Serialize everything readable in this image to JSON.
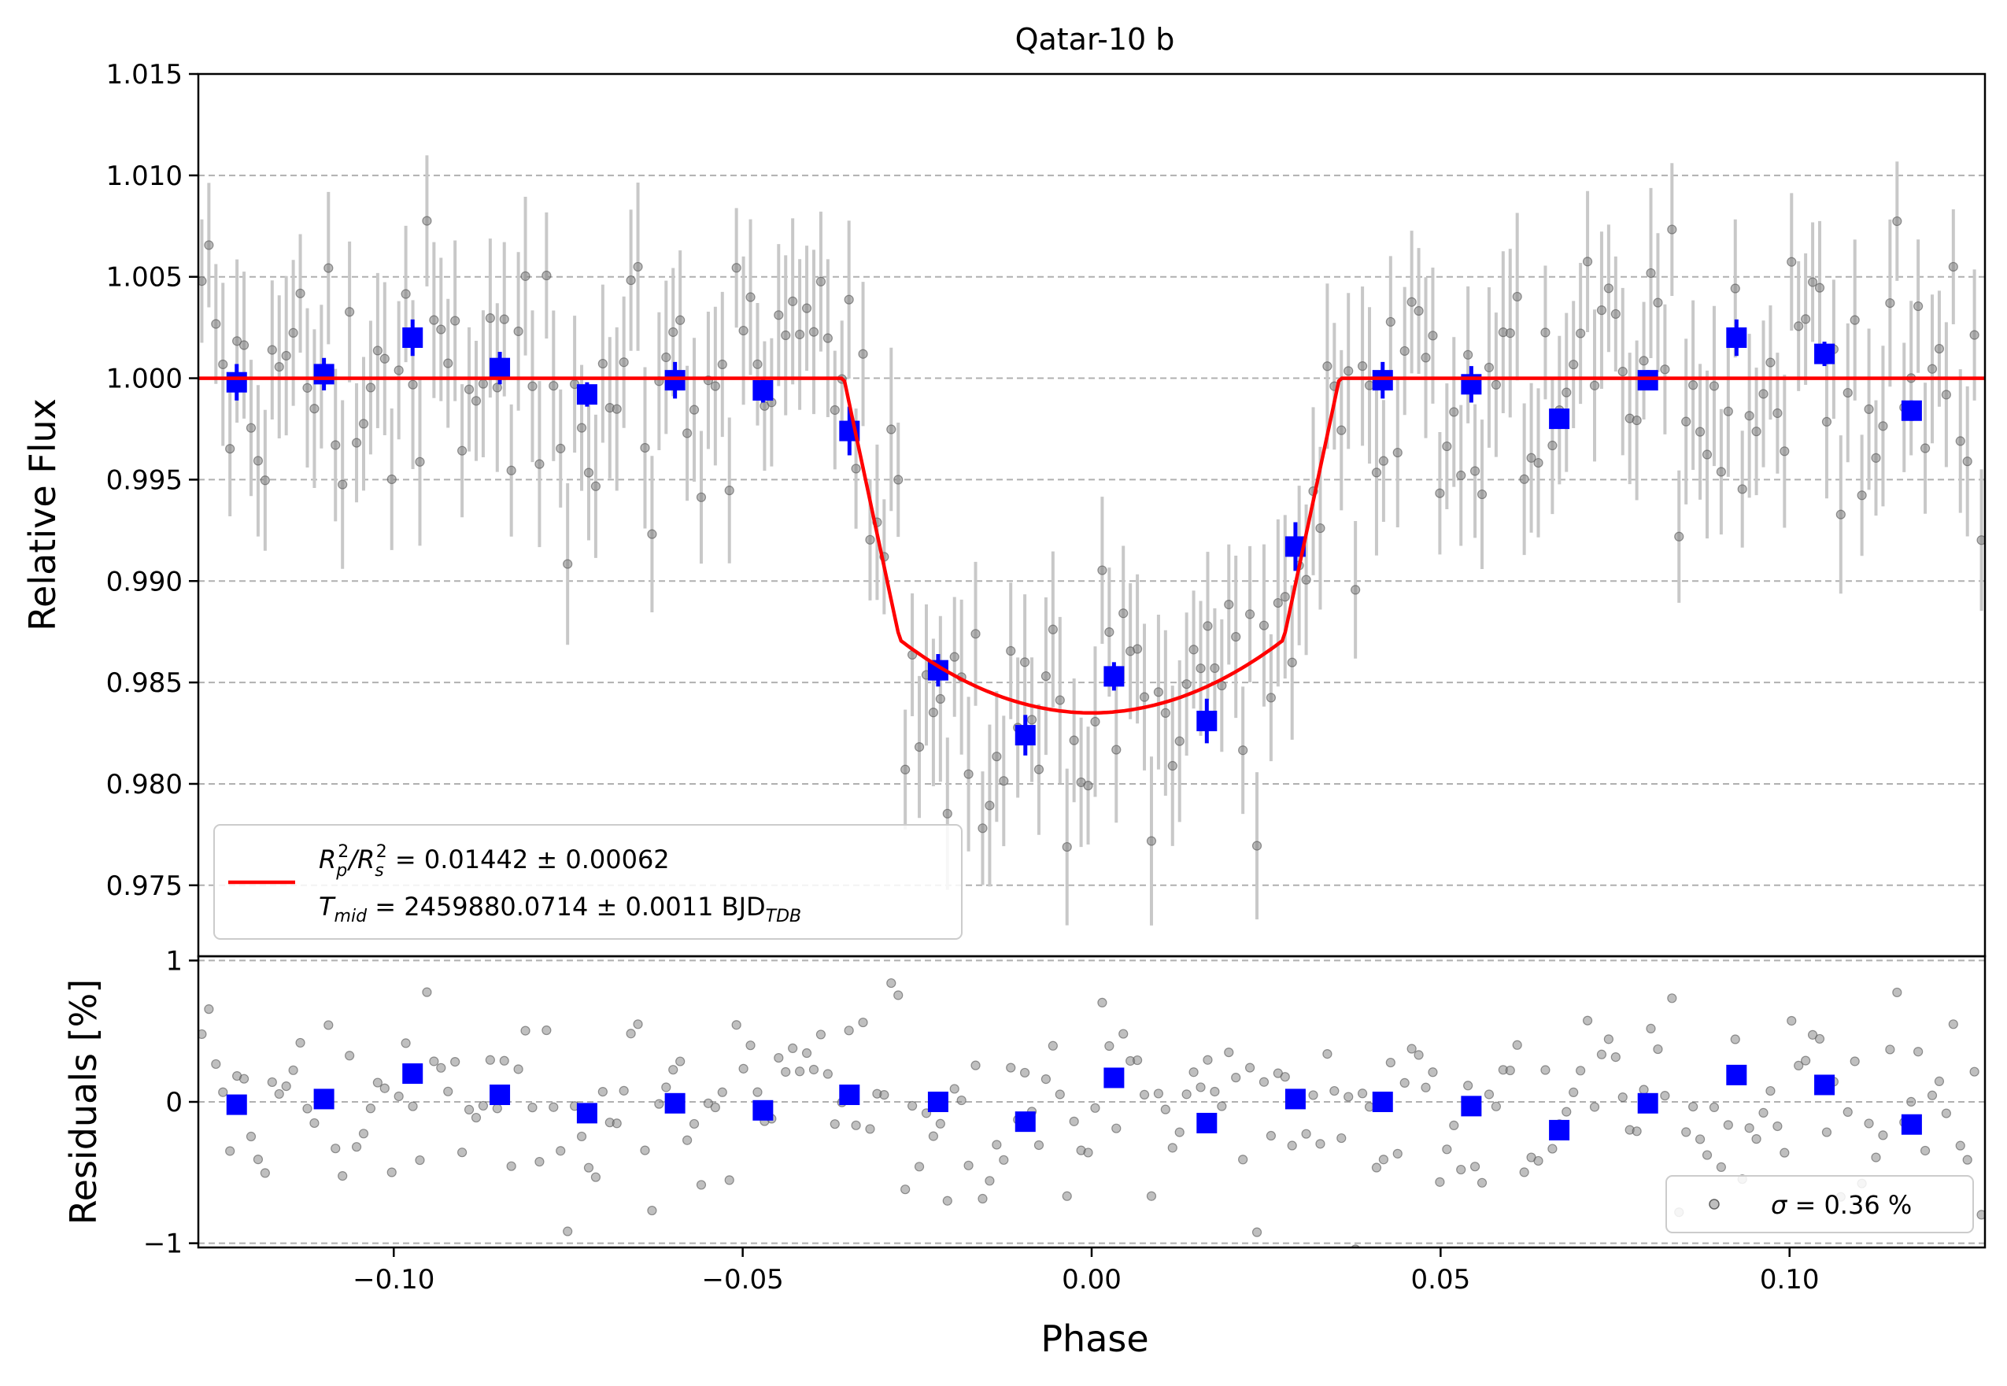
{
  "figure": {
    "title": "Qatar-10 b",
    "xlabel": "Phase",
    "colors": {
      "raw_points": "#808080",
      "raw_errorbars": "#c8c8c8",
      "binned": "#0000ff",
      "model": "#ff0000",
      "grid": "#b0b0b0"
    }
  },
  "chart_data": [
    {
      "type": "scatter",
      "title": "Qatar-10 b",
      "xlabel": "",
      "ylabel": "Relative Flux",
      "xlim": [
        -0.128,
        0.128
      ],
      "ylim": [
        0.9715,
        1.015
      ],
      "grid": "horizontal dashed",
      "yticks": [
        0.975,
        0.98,
        0.985,
        0.99,
        0.995,
        1.0,
        1.005,
        1.01,
        1.015
      ],
      "ytick_labels": [
        "0.975",
        "0.980",
        "0.985",
        "0.990",
        "0.995",
        "1.000",
        "1.005",
        "1.010",
        "1.015"
      ],
      "legend": {
        "placement": "lower-left",
        "line1_prefix": "R",
        "line1_sub1": "p",
        "line1_sup1": "2",
        "line1_sep": "/R",
        "line1_sub2": "s",
        "line1_sup2": "2",
        "line1_value": " = 0.01442 ± 0.00062",
        "line2_prefix": "T",
        "line2_sub": "mid",
        "line2_value": " = 2459880.0714 ± 0.0011 BJD",
        "line2_unit_sub": "TDB"
      },
      "model": {
        "baseline": 1.0,
        "depth_center": 0.9835,
        "t1": 0.0355,
        "t2": 0.0275,
        "t2_flux": 0.9871
      },
      "binned": {
        "x": [
          -0.1225,
          -0.11,
          -0.0973,
          -0.0848,
          -0.0723,
          -0.0597,
          -0.0471,
          -0.0347,
          -0.022,
          -0.0095,
          0.0032,
          0.0165,
          0.0292,
          0.0417,
          0.0544,
          0.067,
          0.0797,
          0.0924,
          0.105,
          0.1175
        ],
        "y": [
          0.9998,
          1.0002,
          1.002,
          1.0005,
          0.9992,
          0.9999,
          0.9994,
          0.9974,
          0.9856,
          0.9824,
          0.9853,
          0.9831,
          0.9917,
          0.9999,
          0.9997,
          0.998,
          0.9999,
          1.002,
          1.0012,
          0.9984
        ],
        "yerr": [
          0.0009,
          0.0008,
          0.0009,
          0.0008,
          0.0006,
          0.0009,
          0.0006,
          0.0012,
          0.0008,
          0.001,
          0.0007,
          0.0011,
          0.0012,
          0.0009,
          0.0009,
          0.0005,
          0.0005,
          0.0009,
          0.0006,
          0.0005
        ]
      }
    },
    {
      "type": "scatter",
      "title": "",
      "xlabel": "Phase",
      "ylabel": "Residuals [%]",
      "xlim": [
        -0.128,
        0.128
      ],
      "ylim": [
        -1.03,
        1.03
      ],
      "grid": "horizontal dashed",
      "xticks": [
        -0.1,
        -0.05,
        0.0,
        0.05,
        0.1
      ],
      "xtick_labels": [
        "−0.10",
        "−0.05",
        "0.00",
        "0.05",
        "0.10"
      ],
      "yticks": [
        -1,
        0,
        1
      ],
      "ytick_labels": [
        "−1",
        "0",
        "1"
      ],
      "legend": {
        "placement": "lower-right",
        "sigma_symbol": "σ",
        "value": " = 0.36 %"
      },
      "binned": {
        "x": [
          -0.1225,
          -0.11,
          -0.0973,
          -0.0848,
          -0.0723,
          -0.0597,
          -0.0471,
          -0.0347,
          -0.022,
          -0.0095,
          0.0032,
          0.0165,
          0.0292,
          0.0417,
          0.0544,
          0.067,
          0.0797,
          0.0924,
          0.105,
          0.1175
        ],
        "y": [
          -0.02,
          0.02,
          0.2,
          0.05,
          -0.08,
          -0.01,
          -0.06,
          0.05,
          0.0,
          -0.14,
          0.17,
          -0.15,
          0.02,
          0.0,
          -0.03,
          -0.2,
          -0.01,
          0.19,
          0.12,
          -0.16
        ]
      }
    }
  ]
}
